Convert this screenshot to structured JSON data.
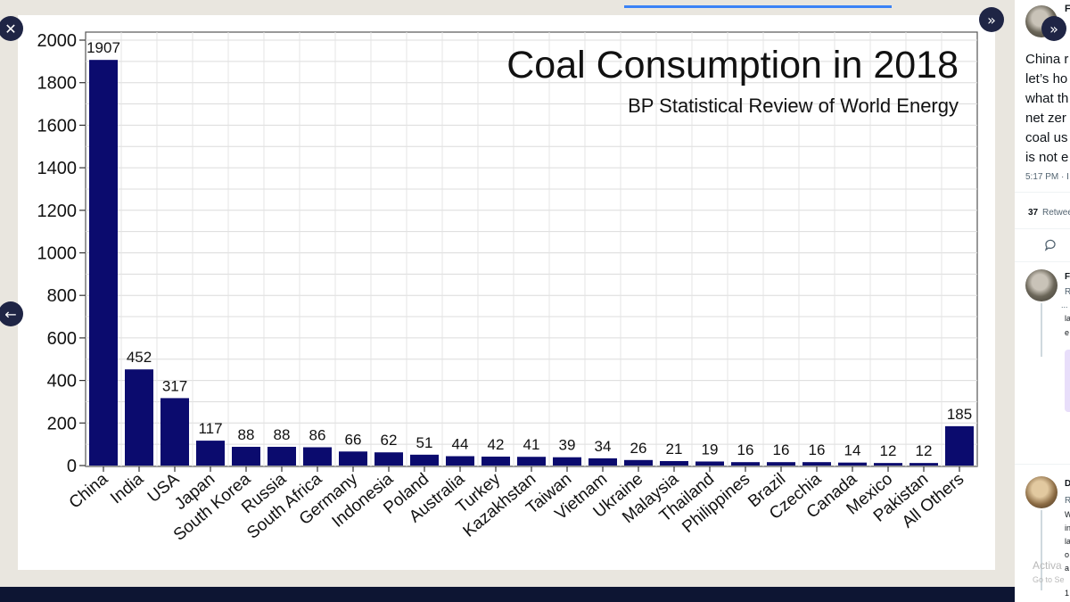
{
  "chart_data": {
    "type": "bar",
    "title": "Coal Consumption in 2018",
    "subtitle": "BP Statistical Review of World Energy",
    "categories": [
      "China",
      "India",
      "USA",
      "Japan",
      "South Korea",
      "Russia",
      "South Africa",
      "Germany",
      "Indonesia",
      "Poland",
      "Australia",
      "Turkey",
      "Kazakhstan",
      "Taiwan",
      "Vietnam",
      "Ukraine",
      "Malaysia",
      "Thailand",
      "Philippines",
      "Brazil",
      "Czechia",
      "Canada",
      "Mexico",
      "Pakistan",
      "All Others"
    ],
    "values": [
      1907,
      452,
      317,
      117,
      88,
      88,
      86,
      66,
      62,
      51,
      44,
      42,
      41,
      39,
      34,
      26,
      21,
      19,
      16,
      16,
      16,
      14,
      12,
      12,
      185
    ],
    "ylim": [
      0,
      2000
    ],
    "yticks": [
      0,
      200,
      400,
      600,
      800,
      1000,
      1200,
      1400,
      1600,
      1800,
      2000
    ],
    "xlabel": "",
    "ylabel": "",
    "grid": true,
    "bar_color": "#0b0b6e"
  },
  "viewer": {
    "close_icon": "✕",
    "prev_icon": "←",
    "expand_icon": "»"
  },
  "sidebar": {
    "author_initial": "F",
    "tweet_lines": [
      "China r",
      "let’s ho",
      "what th",
      "net zer",
      "coal us",
      "is not e"
    ],
    "timestamp": "5:17 PM · I",
    "retweet_count": "37",
    "retweet_label": "Retwee",
    "reply_icon": "speech-bubble-icon",
    "reply1_initial": "F",
    "reply1_handle": "R",
    "reply1_lines": [
      "...",
      "la",
      "e"
    ],
    "reply2_initial": "D",
    "reply2_handle": "R",
    "reply2_lines": [
      "W",
      "in",
      "la",
      "o",
      "a",
      "1"
    ],
    "watermark_line1": "Activa",
    "watermark_line2": "Go to Se"
  }
}
